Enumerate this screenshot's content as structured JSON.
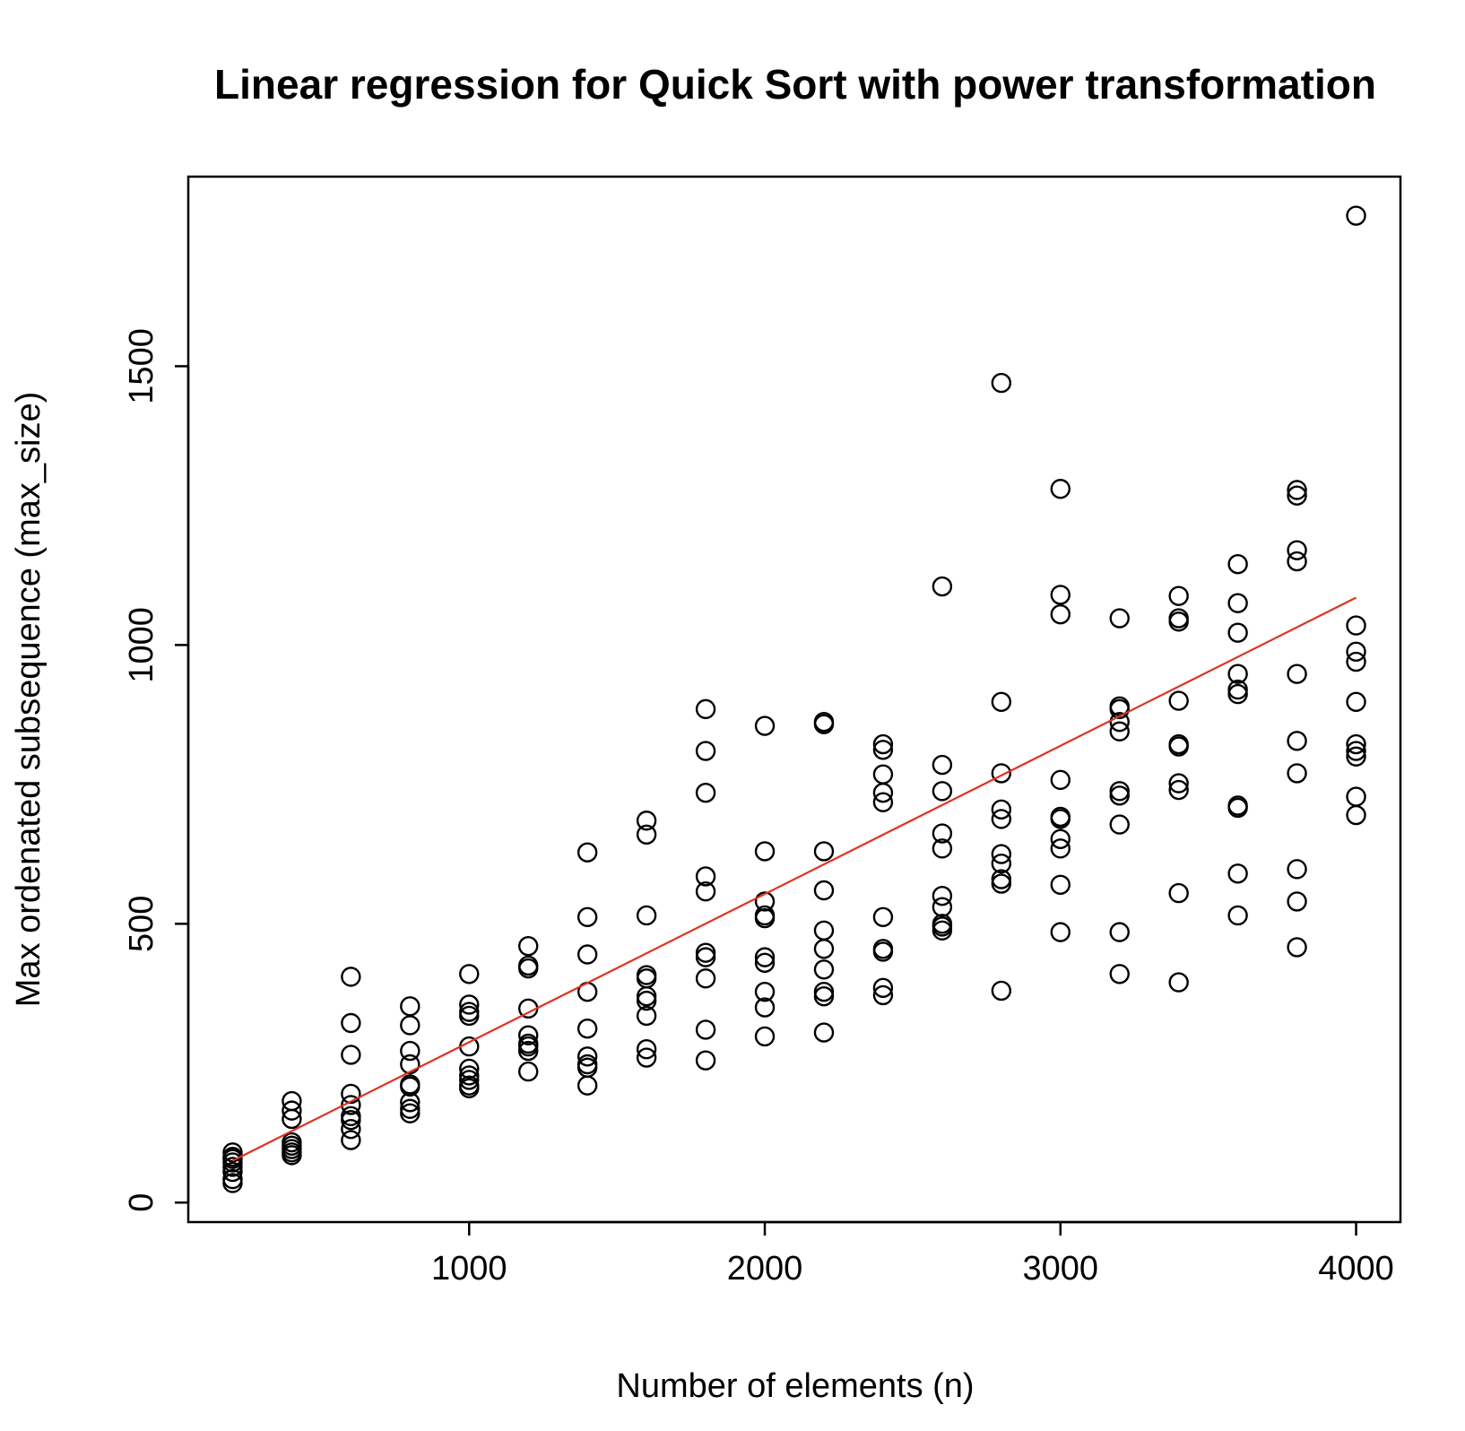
{
  "chart_data": {
    "type": "scatter",
    "title": "Linear regression for Quick Sort with power transformation",
    "xlabel": "Number of elements (n)",
    "ylabel": "Max ordenated subsequence (max_size)",
    "xlim": [
      50,
      4150
    ],
    "ylim": [
      -35,
      1840
    ],
    "x_ticks": [
      1000,
      2000,
      3000,
      4000
    ],
    "y_ticks": [
      0,
      500,
      1000,
      1500
    ],
    "grid": false,
    "regression_color": "#e0321e",
    "point_color": "#000000",
    "regression_line": {
      "x": [
        200,
        4000
      ],
      "y": [
        75,
        1085
      ]
    },
    "series": [
      {
        "values": [
          [
            200,
            90
          ],
          [
            200,
            82
          ],
          [
            200,
            78
          ],
          [
            200,
            72
          ],
          [
            200,
            64
          ],
          [
            200,
            55
          ],
          [
            200,
            42
          ],
          [
            200,
            35
          ],
          [
            400,
            182
          ],
          [
            400,
            165
          ],
          [
            400,
            150
          ],
          [
            400,
            108
          ],
          [
            400,
            102
          ],
          [
            400,
            96
          ],
          [
            400,
            90
          ],
          [
            400,
            85
          ],
          [
            600,
            405
          ],
          [
            600,
            322
          ],
          [
            600,
            265
          ],
          [
            600,
            195
          ],
          [
            600,
            175
          ],
          [
            600,
            155
          ],
          [
            600,
            148
          ],
          [
            600,
            132
          ],
          [
            600,
            112
          ],
          [
            800,
            352
          ],
          [
            800,
            318
          ],
          [
            800,
            272
          ],
          [
            800,
            248
          ],
          [
            800,
            212
          ],
          [
            800,
            208
          ],
          [
            800,
            180
          ],
          [
            800,
            168
          ],
          [
            800,
            160
          ],
          [
            1000,
            410
          ],
          [
            1000,
            355
          ],
          [
            1000,
            342
          ],
          [
            1000,
            335
          ],
          [
            1000,
            280
          ],
          [
            1000,
            240
          ],
          [
            1000,
            228
          ],
          [
            1000,
            220
          ],
          [
            1000,
            210
          ],
          [
            1000,
            205
          ],
          [
            1200,
            460
          ],
          [
            1200,
            425
          ],
          [
            1200,
            420
          ],
          [
            1200,
            348
          ],
          [
            1200,
            300
          ],
          [
            1200,
            285
          ],
          [
            1200,
            280
          ],
          [
            1200,
            272
          ],
          [
            1200,
            235
          ],
          [
            1400,
            628
          ],
          [
            1400,
            512
          ],
          [
            1400,
            445
          ],
          [
            1400,
            378
          ],
          [
            1400,
            312
          ],
          [
            1400,
            262
          ],
          [
            1400,
            248
          ],
          [
            1400,
            242
          ],
          [
            1400,
            210
          ],
          [
            1600,
            685
          ],
          [
            1600,
            660
          ],
          [
            1600,
            515
          ],
          [
            1600,
            408
          ],
          [
            1600,
            402
          ],
          [
            1600,
            370
          ],
          [
            1600,
            362
          ],
          [
            1600,
            335
          ],
          [
            1600,
            275
          ],
          [
            1600,
            260
          ],
          [
            1800,
            885
          ],
          [
            1800,
            810
          ],
          [
            1800,
            735
          ],
          [
            1800,
            585
          ],
          [
            1800,
            558
          ],
          [
            1800,
            448
          ],
          [
            1800,
            440
          ],
          [
            1800,
            402
          ],
          [
            1800,
            310
          ],
          [
            1800,
            255
          ],
          [
            2000,
            855
          ],
          [
            2000,
            630
          ],
          [
            2000,
            540
          ],
          [
            2000,
            515
          ],
          [
            2000,
            510
          ],
          [
            2000,
            440
          ],
          [
            2000,
            430
          ],
          [
            2000,
            378
          ],
          [
            2000,
            350
          ],
          [
            2000,
            298
          ],
          [
            2200,
            862
          ],
          [
            2200,
            858
          ],
          [
            2200,
            630
          ],
          [
            2200,
            560
          ],
          [
            2200,
            488
          ],
          [
            2200,
            455
          ],
          [
            2200,
            418
          ],
          [
            2200,
            378
          ],
          [
            2200,
            370
          ],
          [
            2200,
            305
          ],
          [
            2400,
            822
          ],
          [
            2400,
            812
          ],
          [
            2400,
            768
          ],
          [
            2400,
            735
          ],
          [
            2400,
            718
          ],
          [
            2400,
            512
          ],
          [
            2400,
            455
          ],
          [
            2400,
            450
          ],
          [
            2400,
            385
          ],
          [
            2400,
            372
          ],
          [
            2600,
            1105
          ],
          [
            2600,
            785
          ],
          [
            2600,
            738
          ],
          [
            2600,
            662
          ],
          [
            2600,
            635
          ],
          [
            2600,
            550
          ],
          [
            2600,
            530
          ],
          [
            2600,
            500
          ],
          [
            2600,
            495
          ],
          [
            2600,
            488
          ],
          [
            2800,
            1470
          ],
          [
            2800,
            898
          ],
          [
            2800,
            770
          ],
          [
            2800,
            705
          ],
          [
            2800,
            688
          ],
          [
            2800,
            625
          ],
          [
            2800,
            608
          ],
          [
            2800,
            580
          ],
          [
            2800,
            572
          ],
          [
            2800,
            380
          ],
          [
            3000,
            1280
          ],
          [
            3000,
            1090
          ],
          [
            3000,
            1055
          ],
          [
            3000,
            758
          ],
          [
            3000,
            692
          ],
          [
            3000,
            688
          ],
          [
            3000,
            652
          ],
          [
            3000,
            635
          ],
          [
            3000,
            570
          ],
          [
            3000,
            485
          ],
          [
            3200,
            1048
          ],
          [
            3200,
            890
          ],
          [
            3200,
            885
          ],
          [
            3200,
            862
          ],
          [
            3200,
            845
          ],
          [
            3200,
            738
          ],
          [
            3200,
            730
          ],
          [
            3200,
            678
          ],
          [
            3200,
            485
          ],
          [
            3200,
            410
          ],
          [
            3400,
            1088
          ],
          [
            3400,
            1048
          ],
          [
            3400,
            1042
          ],
          [
            3400,
            900
          ],
          [
            3400,
            822
          ],
          [
            3400,
            818
          ],
          [
            3400,
            752
          ],
          [
            3400,
            740
          ],
          [
            3400,
            555
          ],
          [
            3400,
            395
          ],
          [
            3600,
            1145
          ],
          [
            3600,
            1075
          ],
          [
            3600,
            1022
          ],
          [
            3600,
            948
          ],
          [
            3600,
            920
          ],
          [
            3600,
            912
          ],
          [
            3600,
            712
          ],
          [
            3600,
            708
          ],
          [
            3600,
            590
          ],
          [
            3600,
            515
          ],
          [
            3800,
            1278
          ],
          [
            3800,
            1268
          ],
          [
            3800,
            1170
          ],
          [
            3800,
            1150
          ],
          [
            3800,
            948
          ],
          [
            3800,
            828
          ],
          [
            3800,
            770
          ],
          [
            3800,
            598
          ],
          [
            3800,
            540
          ],
          [
            3800,
            458
          ],
          [
            4000,
            1770
          ],
          [
            4000,
            1035
          ],
          [
            4000,
            988
          ],
          [
            4000,
            970
          ],
          [
            4000,
            898
          ],
          [
            4000,
            822
          ],
          [
            4000,
            810
          ],
          [
            4000,
            800
          ],
          [
            4000,
            728
          ],
          [
            4000,
            695
          ]
        ]
      }
    ]
  }
}
